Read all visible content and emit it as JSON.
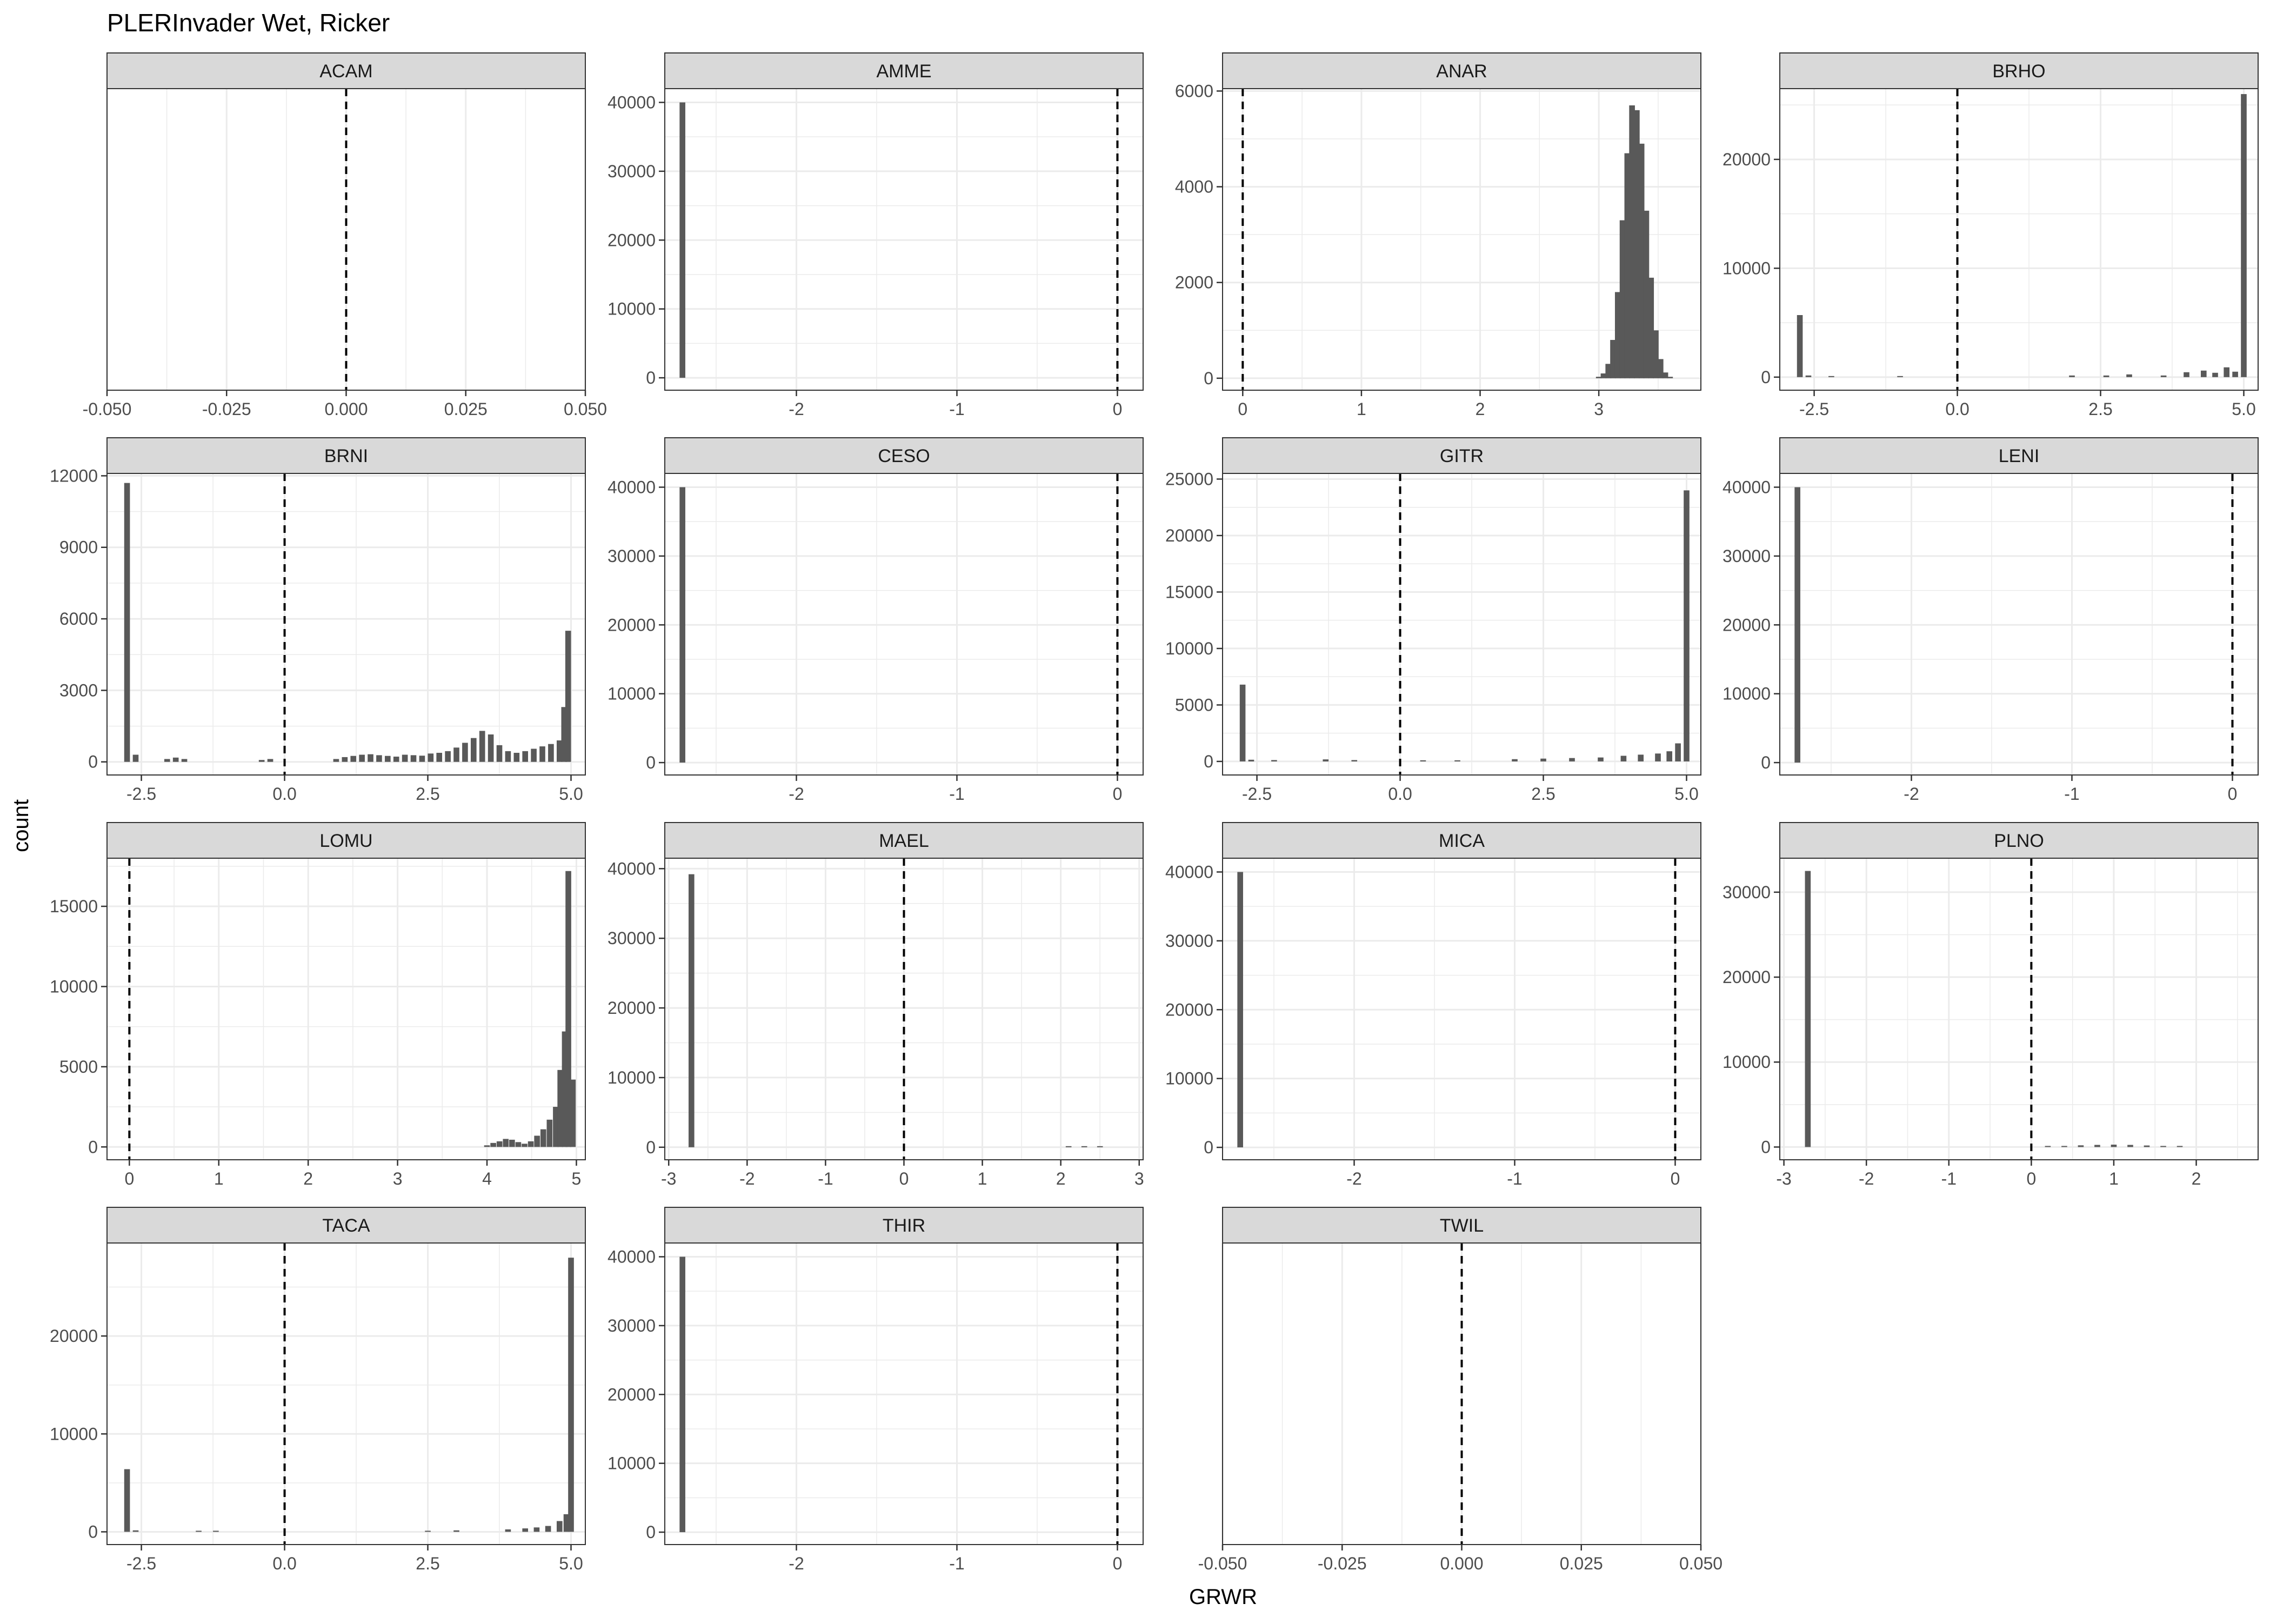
{
  "chart_data": {
    "type": "histogram-facets",
    "title": "PLERInvader Wet, Ricker",
    "xlabel": "GRWR",
    "ylabel": "count",
    "reference_line_x": 0,
    "grid": true,
    "colors": {
      "bar": "#595959",
      "strip_bg": "#d9d9d9",
      "grid": "#ebebeb",
      "panel_border": "#333333"
    },
    "panels": [
      {
        "name": "ACAM",
        "xlim": [
          -0.05,
          0.05
        ],
        "ylim": null,
        "xticks": [
          -0.05,
          -0.025,
          0,
          0.025,
          0.05
        ],
        "xtick_labels": [
          "-0.050",
          "-0.025",
          "0.000",
          "0.025",
          "0.050"
        ],
        "yticks": [],
        "ytick_labels": [],
        "bins": []
      },
      {
        "name": "AMME",
        "xlim": [
          -2.82,
          0.16
        ],
        "ylim": [
          -1800,
          42000
        ],
        "xticks": [
          -2,
          -1,
          0
        ],
        "xtick_labels": [
          "-2",
          "-1",
          "0"
        ],
        "yticks": [
          0,
          10000,
          20000,
          30000,
          40000
        ],
        "ytick_labels": [
          "0",
          "10000",
          "20000",
          "30000",
          "40000"
        ],
        "bins": [
          [
            -2.71,
            40000
          ]
        ]
      },
      {
        "name": "ANAR",
        "xlim": [
          -0.17,
          3.86
        ],
        "ylim": [
          -250,
          6050
        ],
        "xticks": [
          0,
          1,
          2,
          3
        ],
        "xtick_labels": [
          "0",
          "1",
          "2",
          "3"
        ],
        "yticks": [
          0,
          2000,
          4000,
          6000
        ],
        "ytick_labels": [
          "0",
          "2000",
          "4000",
          "6000"
        ],
        "bins": [
          [
            3.0,
            30
          ],
          [
            3.04,
            100
          ],
          [
            3.08,
            300
          ],
          [
            3.12,
            800
          ],
          [
            3.16,
            1800
          ],
          [
            3.2,
            3300
          ],
          [
            3.24,
            4700
          ],
          [
            3.28,
            5700
          ],
          [
            3.32,
            5600
          ],
          [
            3.36,
            4900
          ],
          [
            3.4,
            3500
          ],
          [
            3.44,
            2100
          ],
          [
            3.48,
            1000
          ],
          [
            3.52,
            400
          ],
          [
            3.56,
            120
          ],
          [
            3.6,
            30
          ]
        ]
      },
      {
        "name": "BRHO",
        "xlim": [
          -3.1,
          5.25
        ],
        "ylim": [
          -1200,
          26500
        ],
        "xticks": [
          -2.5,
          0,
          2.5,
          5
        ],
        "xtick_labels": [
          "-2.5",
          "0.0",
          "2.5",
          "5.0"
        ],
        "yticks": [
          0,
          10000,
          20000
        ],
        "ytick_labels": [
          "0",
          "10000",
          "20000"
        ],
        "bins": [
          [
            -2.75,
            5700
          ],
          [
            -2.6,
            150
          ],
          [
            -2.2,
            100
          ],
          [
            -1.0,
            80
          ],
          [
            2.0,
            150
          ],
          [
            2.6,
            150
          ],
          [
            3.0,
            250
          ],
          [
            3.6,
            150
          ],
          [
            4.0,
            450
          ],
          [
            4.3,
            600
          ],
          [
            4.5,
            400
          ],
          [
            4.7,
            900
          ],
          [
            4.85,
            500
          ],
          [
            5.0,
            26000
          ]
        ]
      },
      {
        "name": "BRNI",
        "xlim": [
          -3.1,
          5.25
        ],
        "ylim": [
          -550,
          12100
        ],
        "xticks": [
          -2.5,
          0,
          2.5,
          5
        ],
        "xtick_labels": [
          "-2.5",
          "0.0",
          "2.5",
          "5.0"
        ],
        "yticks": [
          0,
          3000,
          6000,
          9000,
          12000
        ],
        "ytick_labels": [
          "0",
          "3000",
          "6000",
          "9000",
          "12000"
        ],
        "bins": [
          [
            -2.75,
            11700
          ],
          [
            -2.6,
            300
          ],
          [
            -2.05,
            120
          ],
          [
            -1.9,
            180
          ],
          [
            -1.75,
            120
          ],
          [
            -0.4,
            80
          ],
          [
            -0.25,
            120
          ],
          [
            0.9,
            120
          ],
          [
            1.05,
            200
          ],
          [
            1.2,
            250
          ],
          [
            1.35,
            300
          ],
          [
            1.5,
            320
          ],
          [
            1.65,
            280
          ],
          [
            1.8,
            250
          ],
          [
            1.95,
            220
          ],
          [
            2.1,
            300
          ],
          [
            2.25,
            280
          ],
          [
            2.4,
            260
          ],
          [
            2.55,
            350
          ],
          [
            2.7,
            380
          ],
          [
            2.85,
            450
          ],
          [
            3.0,
            600
          ],
          [
            3.15,
            800
          ],
          [
            3.3,
            1000
          ],
          [
            3.45,
            1300
          ],
          [
            3.6,
            1150
          ],
          [
            3.75,
            700
          ],
          [
            3.9,
            450
          ],
          [
            4.05,
            380
          ],
          [
            4.2,
            450
          ],
          [
            4.35,
            550
          ],
          [
            4.5,
            650
          ],
          [
            4.65,
            750
          ],
          [
            4.8,
            900
          ],
          [
            4.88,
            2300
          ],
          [
            4.95,
            5500
          ]
        ]
      },
      {
        "name": "CESO",
        "xlim": [
          -2.82,
          0.16
        ],
        "ylim": [
          -1800,
          42000
        ],
        "xticks": [
          -2,
          -1,
          0
        ],
        "xtick_labels": [
          "-2",
          "-1",
          "0"
        ],
        "yticks": [
          0,
          10000,
          20000,
          30000,
          40000
        ],
        "ytick_labels": [
          "0",
          "10000",
          "20000",
          "30000",
          "40000"
        ],
        "bins": [
          [
            -2.71,
            40000
          ]
        ]
      },
      {
        "name": "GITR",
        "xlim": [
          -3.1,
          5.25
        ],
        "ylim": [
          -1200,
          25500
        ],
        "xticks": [
          -2.5,
          0,
          2.5,
          5
        ],
        "xtick_labels": [
          "-2.5",
          "0.0",
          "2.5",
          "5.0"
        ],
        "yticks": [
          0,
          5000,
          10000,
          15000,
          20000,
          25000
        ],
        "ytick_labels": [
          "0",
          "5000",
          "10000",
          "15000",
          "20000",
          "25000"
        ],
        "bins": [
          [
            -2.75,
            6800
          ],
          [
            -2.6,
            150
          ],
          [
            -2.2,
            120
          ],
          [
            -1.3,
            180
          ],
          [
            -0.8,
            120
          ],
          [
            0.4,
            100
          ],
          [
            1.0,
            100
          ],
          [
            2.0,
            200
          ],
          [
            2.5,
            250
          ],
          [
            3.0,
            300
          ],
          [
            3.5,
            350
          ],
          [
            3.9,
            500
          ],
          [
            4.2,
            600
          ],
          [
            4.5,
            700
          ],
          [
            4.7,
            900
          ],
          [
            4.85,
            1600
          ],
          [
            5.0,
            24000
          ]
        ]
      },
      {
        "name": "LENI",
        "xlim": [
          -2.82,
          0.16
        ],
        "ylim": [
          -1800,
          42000
        ],
        "xticks": [
          -2,
          -1,
          0
        ],
        "xtick_labels": [
          "-2",
          "-1",
          "0"
        ],
        "yticks": [
          0,
          10000,
          20000,
          30000,
          40000
        ],
        "ytick_labels": [
          "0",
          "10000",
          "20000",
          "30000",
          "40000"
        ],
        "bins": [
          [
            -2.71,
            40000
          ]
        ]
      },
      {
        "name": "LOMU",
        "xlim": [
          -0.25,
          5.1
        ],
        "ylim": [
          -800,
          18000
        ],
        "xticks": [
          0,
          1,
          2,
          3,
          4,
          5
        ],
        "xtick_labels": [
          "0",
          "1",
          "2",
          "3",
          "4",
          "5"
        ],
        "yticks": [
          0,
          5000,
          10000,
          15000
        ],
        "ytick_labels": [
          "0",
          "5000",
          "10000",
          "15000"
        ],
        "bins": [
          [
            4.0,
            100
          ],
          [
            4.07,
            250
          ],
          [
            4.14,
            350
          ],
          [
            4.21,
            500
          ],
          [
            4.28,
            450
          ],
          [
            4.35,
            300
          ],
          [
            4.42,
            200
          ],
          [
            4.49,
            350
          ],
          [
            4.56,
            700
          ],
          [
            4.63,
            1100
          ],
          [
            4.7,
            1700
          ],
          [
            4.77,
            2500
          ],
          [
            4.82,
            4800
          ],
          [
            4.87,
            7200
          ],
          [
            4.91,
            17200
          ],
          [
            4.96,
            4200
          ]
        ]
      },
      {
        "name": "MAEL",
        "xlim": [
          -3.05,
          3.05
        ],
        "ylim": [
          -1800,
          41500
        ],
        "xticks": [
          -3,
          -2,
          -1,
          0,
          1,
          2,
          3
        ],
        "xtick_labels": [
          "-3",
          "-2",
          "-1",
          "0",
          "1",
          "2",
          "3"
        ],
        "yticks": [
          0,
          10000,
          20000,
          30000,
          40000
        ],
        "ytick_labels": [
          "0",
          "10000",
          "20000",
          "30000",
          "40000"
        ],
        "bins": [
          [
            -2.71,
            39200
          ],
          [
            2.1,
            80
          ],
          [
            2.3,
            150
          ],
          [
            2.5,
            120
          ]
        ]
      },
      {
        "name": "MICA",
        "xlim": [
          -2.82,
          0.16
        ],
        "ylim": [
          -1800,
          42000
        ],
        "xticks": [
          -2,
          -1,
          0
        ],
        "xtick_labels": [
          "-2",
          "-1",
          "0"
        ],
        "yticks": [
          0,
          10000,
          20000,
          30000,
          40000
        ],
        "ytick_labels": [
          "0",
          "10000",
          "20000",
          "30000",
          "40000"
        ],
        "bins": [
          [
            -2.71,
            40000
          ]
        ]
      },
      {
        "name": "PLNO",
        "xlim": [
          -3.05,
          2.75
        ],
        "ylim": [
          -1500,
          34000
        ],
        "xticks": [
          -3,
          -2,
          -1,
          0,
          1,
          2
        ],
        "xtick_labels": [
          "-3",
          "-2",
          "-1",
          "0",
          "1",
          "2"
        ],
        "yticks": [
          0,
          10000,
          20000,
          30000
        ],
        "ytick_labels": [
          "0",
          "10000",
          "20000",
          "30000"
        ],
        "bins": [
          [
            -2.71,
            32500
          ],
          [
            0.2,
            50
          ],
          [
            0.4,
            120
          ],
          [
            0.6,
            200
          ],
          [
            0.8,
            250
          ],
          [
            1.0,
            280
          ],
          [
            1.2,
            250
          ],
          [
            1.4,
            180
          ],
          [
            1.6,
            110
          ],
          [
            1.8,
            50
          ]
        ]
      },
      {
        "name": "TACA",
        "xlim": [
          -3.1,
          5.25
        ],
        "ylim": [
          -1300,
          29500
        ],
        "xticks": [
          -2.5,
          0,
          2.5,
          5
        ],
        "xtick_labels": [
          "-2.5",
          "0.0",
          "2.5",
          "5.0"
        ],
        "yticks": [
          0,
          10000,
          20000
        ],
        "ytick_labels": [
          "0",
          "10000",
          "20000"
        ],
        "bins": [
          [
            -2.75,
            6400
          ],
          [
            -2.6,
            150
          ],
          [
            -1.5,
            100
          ],
          [
            -1.2,
            80
          ],
          [
            2.5,
            100
          ],
          [
            3.0,
            150
          ],
          [
            3.9,
            250
          ],
          [
            4.2,
            350
          ],
          [
            4.4,
            450
          ],
          [
            4.6,
            600
          ],
          [
            4.8,
            1100
          ],
          [
            4.92,
            1800
          ],
          [
            5.0,
            28000
          ]
        ]
      },
      {
        "name": "THIR",
        "xlim": [
          -2.82,
          0.16
        ],
        "ylim": [
          -1800,
          42000
        ],
        "xticks": [
          -2,
          -1,
          0
        ],
        "xtick_labels": [
          "-2",
          "-1",
          "0"
        ],
        "yticks": [
          0,
          10000,
          20000,
          30000,
          40000
        ],
        "ytick_labels": [
          "0",
          "10000",
          "20000",
          "30000",
          "40000"
        ],
        "bins": [
          [
            -2.71,
            40000
          ]
        ]
      },
      {
        "name": "TWIL",
        "xlim": [
          -0.05,
          0.05
        ],
        "ylim": null,
        "xticks": [
          -0.05,
          -0.025,
          0,
          0.025,
          0.05
        ],
        "xtick_labels": [
          "-0.050",
          "-0.025",
          "0.000",
          "0.025",
          "0.050"
        ],
        "yticks": [],
        "ytick_labels": [],
        "bins": []
      }
    ]
  }
}
